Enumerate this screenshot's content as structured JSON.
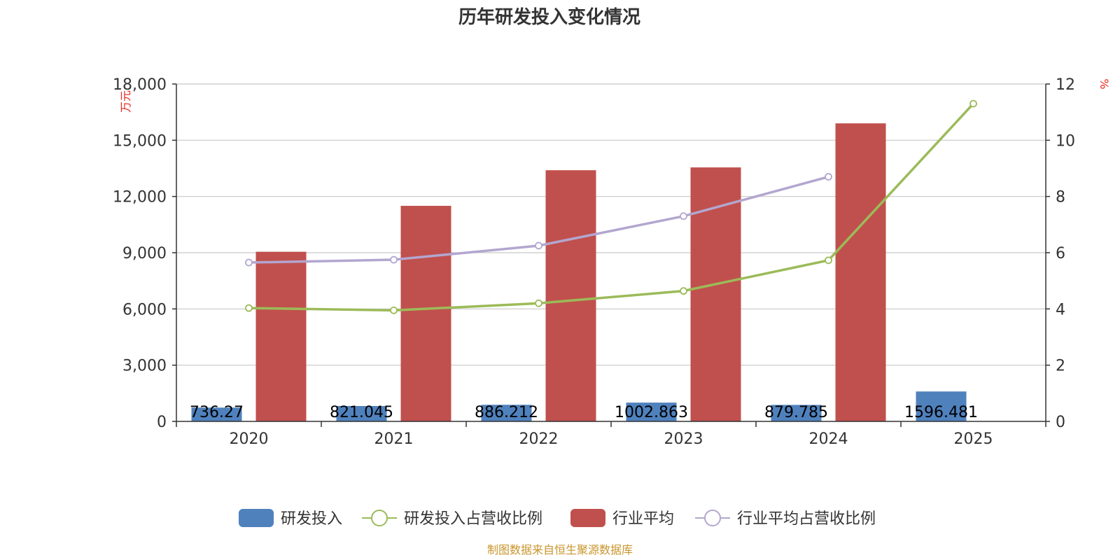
{
  "chart_data": {
    "type": "bar",
    "title": "历年研发投入变化情况",
    "categories": [
      "2020",
      "2021",
      "2022",
      "2023",
      "2024",
      "2025"
    ],
    "y_left": {
      "unit": "万元",
      "ticks": [
        "0",
        "3,000",
        "6,000",
        "9,000",
        "12,000",
        "15,000",
        "18,000"
      ],
      "ylim": [
        0,
        18000
      ]
    },
    "y_right": {
      "unit": "%",
      "ticks": [
        "0",
        "2",
        "4",
        "6",
        "8",
        "10",
        "12"
      ],
      "ylim": [
        0,
        12
      ]
    },
    "grid": true,
    "legend_position": "bottom",
    "series": [
      {
        "name": "研发投入",
        "kind": "bar",
        "axis": "left",
        "color": "#4f81bd",
        "values": [
          736.27,
          821.045,
          886.212,
          1002.863,
          879.785,
          1596.481
        ],
        "labels": [
          "736.27",
          "821.045",
          "886.212",
          "1002.863",
          "879.785",
          "1596.481"
        ]
      },
      {
        "name": "研发投入占营收比例",
        "kind": "line",
        "axis": "right",
        "color": "#9bbb59",
        "values": [
          4.03,
          3.95,
          4.2,
          4.64,
          5.73,
          11.3
        ]
      },
      {
        "name": "行业平均",
        "kind": "bar",
        "axis": "left",
        "color": "#c0504d",
        "values": [
          9050,
          11500,
          13400,
          13550,
          15900,
          null
        ]
      },
      {
        "name": "行业平均占营收比例",
        "kind": "line",
        "axis": "right",
        "color": "#b3a6cf",
        "values": [
          5.65,
          5.75,
          6.25,
          7.3,
          8.7,
          null
        ]
      }
    ]
  },
  "source_text": "制图数据来自恒生聚源数据库"
}
